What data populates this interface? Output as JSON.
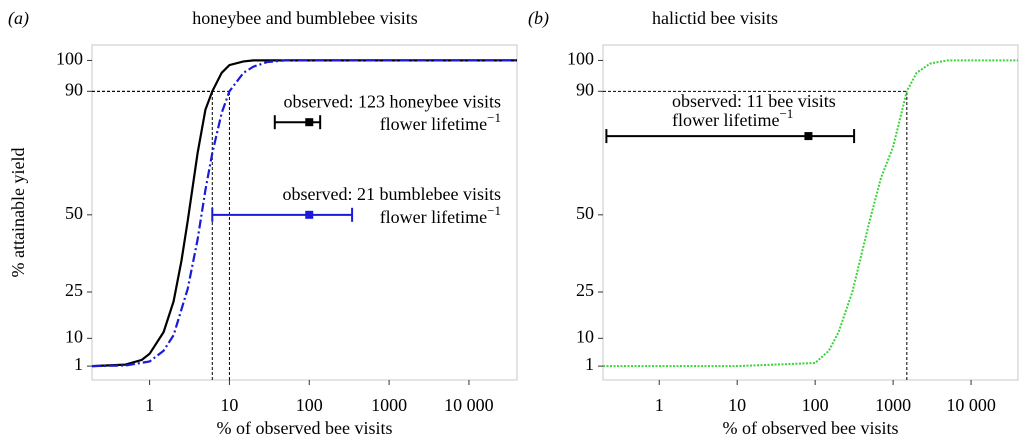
{
  "chart_data": [
    {
      "type": "line",
      "panel_label": "(a)",
      "title": "honeybee and bumblebee visits",
      "x_label": "% of observed bee visits",
      "y_label": "% attainable yield",
      "log_x": true,
      "xlim": [
        0.19,
        40000
      ],
      "ylim": [
        -3.5,
        105
      ],
      "xticks": [
        1,
        10,
        100,
        1000,
        {
          "value": 10000,
          "label": "10 000"
        }
      ],
      "yticks": [
        1,
        10,
        25,
        50,
        90,
        100
      ],
      "series": [
        {
          "color": "#000000",
          "dash": "solid",
          "x": [
            0.19,
            0.5,
            0.8,
            1,
            1.5,
            2,
            2.5,
            3,
            4,
            5,
            6.1,
            8,
            10,
            15,
            20,
            50,
            40000
          ],
          "values": [
            1,
            1.5,
            3,
            5,
            12,
            22,
            35,
            48,
            70,
            84,
            90,
            96,
            98.5,
            99.7,
            100,
            100,
            100
          ]
        },
        {
          "color": "#1a1adb",
          "dash": "dashdot",
          "x": [
            0.19,
            0.5,
            1,
            1.5,
            2,
            3,
            4,
            5,
            6.1,
            8,
            10,
            15,
            20,
            30,
            50,
            40000
          ],
          "values": [
            1,
            1.2,
            2.5,
            6,
            11,
            26,
            42,
            58,
            70,
            83,
            90,
            96,
            98,
            99.5,
            100,
            100
          ]
        }
      ],
      "reference_lines": [
        {
          "x": 6.1,
          "y": 90
        },
        {
          "x": 10,
          "y": 90
        }
      ],
      "error_bars": [
        {
          "x": 100,
          "y": 80,
          "x_low": 37,
          "x_high": 137,
          "color": "#000000",
          "label": "observed: 123 honeybee visits",
          "label_line2": "flower lifetime",
          "label_sup": "−1"
        },
        {
          "x": 100,
          "y": 50,
          "x_low": 6.1,
          "x_high": 344,
          "color": "#1a1adb",
          "label": "observed: 21 bumblebee visits",
          "label_line2": "flower lifetime",
          "label_sup": "−1"
        }
      ]
    },
    {
      "type": "line",
      "panel_label": "(b)",
      "title": "halictid bee visits",
      "x_label": "% of observed bee visits",
      "log_x": true,
      "xlim": [
        0.19,
        40000
      ],
      "ylim": [
        -3.5,
        105
      ],
      "xticks": [
        1,
        10,
        100,
        1000,
        {
          "value": 10000,
          "label": "10 000"
        }
      ],
      "yticks": [
        1,
        10,
        25,
        50,
        90,
        100
      ],
      "series": [
        {
          "color": "#3ad43a",
          "dash": "dotted",
          "x": [
            0.19,
            10,
            100,
            150,
            200,
            300,
            500,
            700,
            1000,
            1500,
            2000,
            3000,
            5000,
            10000,
            40000
          ],
          "values": [
            1,
            1,
            2,
            6,
            12,
            25,
            48,
            62,
            72,
            90,
            96,
            99,
            100,
            100,
            100
          ]
        }
      ],
      "reference_lines": [
        {
          "x": 1500,
          "y": 90
        }
      ],
      "error_bars": [
        {
          "x": 82,
          "y": 75.5,
          "x_low": 0.21,
          "x_high": 316,
          "color": "#000000",
          "label": "observed: 11 bee visits",
          "label_line2": "flower lifetime",
          "label_sup": "−1"
        }
      ]
    }
  ]
}
